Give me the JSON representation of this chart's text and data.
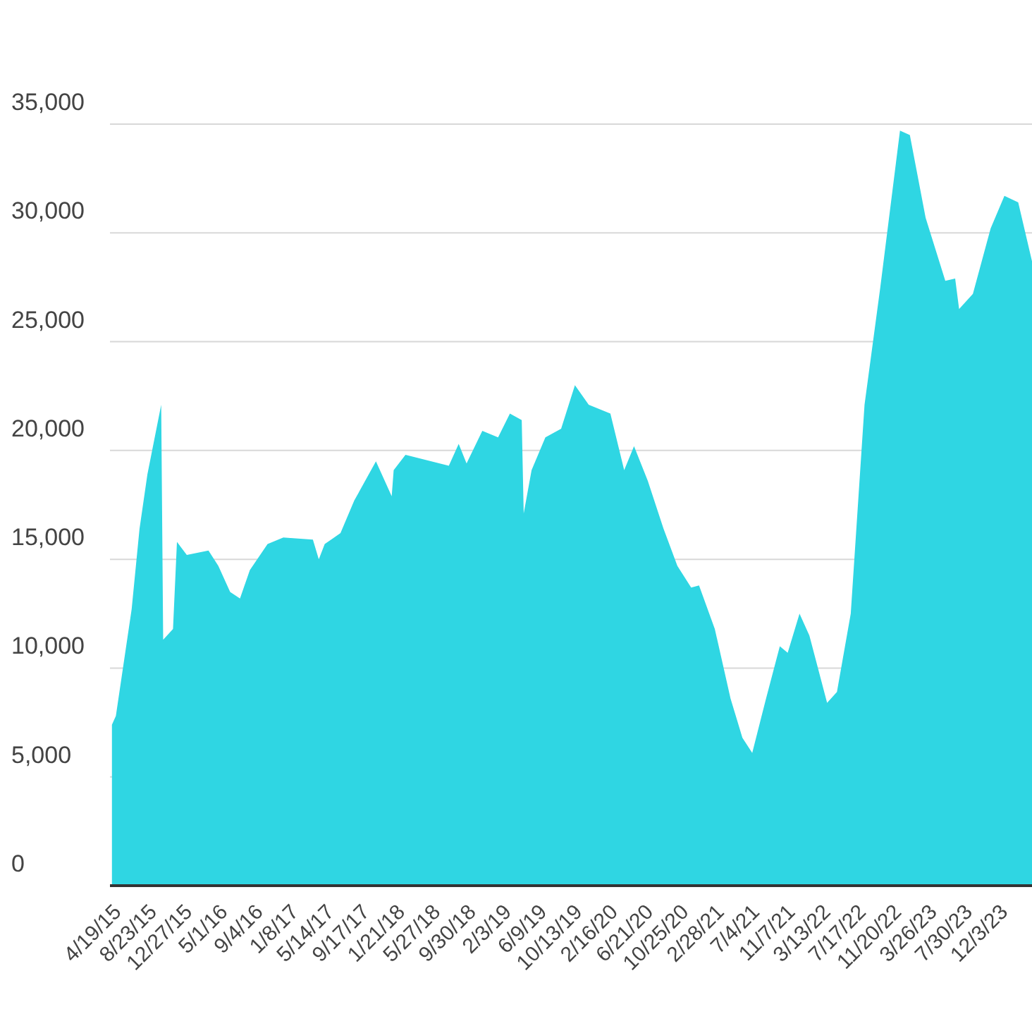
{
  "chart_data": {
    "type": "area",
    "color": "#2fd6e3",
    "grid": "y",
    "legend": false,
    "x": [
      "2015-04-19",
      "2015-05-03",
      "2015-06-28",
      "2015-07-26",
      "2015-08-23",
      "2015-10-11",
      "2015-10-18",
      "2015-11-22",
      "2015-12-06",
      "2016-01-10",
      "2016-03-27",
      "2016-05-01",
      "2016-06-12",
      "2016-07-17",
      "2016-08-21",
      "2016-10-23",
      "2016-12-18",
      "2017-04-02",
      "2017-04-23",
      "2017-05-14",
      "2017-07-09",
      "2017-08-27",
      "2017-11-12",
      "2018-01-07",
      "2018-01-14",
      "2018-02-25",
      "2018-07-29",
      "2018-09-02",
      "2018-09-30",
      "2018-11-25",
      "2019-01-20",
      "2019-03-03",
      "2019-04-14",
      "2019-04-21",
      "2019-05-19",
      "2019-07-07",
      "2019-09-01",
      "2019-10-20",
      "2019-12-08",
      "2020-02-23",
      "2020-04-12",
      "2020-05-17",
      "2020-07-05",
      "2020-08-30",
      "2020-10-18",
      "2020-12-06",
      "2021-01-03",
      "2021-02-28",
      "2021-04-25",
      "2021-06-06",
      "2021-07-11",
      "2021-08-29",
      "2021-10-17",
      "2021-11-14",
      "2021-12-26",
      "2022-01-30",
      "2022-04-03",
      "2022-05-08",
      "2022-06-26",
      "2022-08-14",
      "2022-10-09",
      "2022-12-18",
      "2023-01-22",
      "2023-03-19",
      "2023-05-28",
      "2023-07-02",
      "2023-07-16",
      "2023-09-03",
      "2023-11-05",
      "2023-12-24",
      "2024-02-11",
      "2024-03-31"
    ],
    "values": [
      7400,
      7800,
      12700,
      16400,
      18900,
      22100,
      11300,
      11800,
      15800,
      15200,
      15400,
      14700,
      13500,
      13200,
      14500,
      15700,
      16000,
      15900,
      15000,
      15700,
      16200,
      17700,
      19500,
      17900,
      19100,
      19800,
      19300,
      20300,
      19400,
      20900,
      20600,
      21700,
      21400,
      17100,
      19100,
      20600,
      21000,
      23000,
      22100,
      21700,
      19100,
      20200,
      18600,
      16400,
      14700,
      13700,
      13800,
      11800,
      8600,
      6800,
      6100,
      8600,
      11000,
      10700,
      12500,
      11500,
      8400,
      8900,
      12500,
      22100,
      27500,
      34700,
      34500,
      30700,
      27800,
      27900,
      26500,
      27200,
      30200,
      31700,
      31400,
      28700
    ],
    "xlim": [
      "2015-04-12",
      "2024-03-31"
    ],
    "xticks": [
      {
        "value": "2015-04-19",
        "label": "4/19/15"
      },
      {
        "value": "2015-08-23",
        "label": "8/23/15"
      },
      {
        "value": "2015-12-27",
        "label": "12/27/15"
      },
      {
        "value": "2016-05-01",
        "label": "5/1/16"
      },
      {
        "value": "2016-09-04",
        "label": "9/4/16"
      },
      {
        "value": "2017-01-08",
        "label": "1/8/17"
      },
      {
        "value": "2017-05-14",
        "label": "5/14/17"
      },
      {
        "value": "2017-09-17",
        "label": "9/17/17"
      },
      {
        "value": "2018-01-21",
        "label": "1/21/18"
      },
      {
        "value": "2018-05-27",
        "label": "5/27/18"
      },
      {
        "value": "2018-09-30",
        "label": "9/30/18"
      },
      {
        "value": "2019-02-03",
        "label": "2/3/19"
      },
      {
        "value": "2019-06-09",
        "label": "6/9/19"
      },
      {
        "value": "2019-10-13",
        "label": "10/13/19"
      },
      {
        "value": "2020-02-16",
        "label": "2/16/20"
      },
      {
        "value": "2020-06-21",
        "label": "6/21/20"
      },
      {
        "value": "2020-10-25",
        "label": "10/25/20"
      },
      {
        "value": "2021-02-28",
        "label": "2/28/21"
      },
      {
        "value": "2021-07-04",
        "label": "7/4/21"
      },
      {
        "value": "2021-11-07",
        "label": "11/7/21"
      },
      {
        "value": "2022-03-13",
        "label": "3/13/22"
      },
      {
        "value": "2022-07-17",
        "label": "7/17/22"
      },
      {
        "value": "2022-11-20",
        "label": "11/20/22"
      },
      {
        "value": "2023-03-26",
        "label": "3/26/23"
      },
      {
        "value": "2023-07-30",
        "label": "7/30/23"
      },
      {
        "value": "2023-12-03",
        "label": "12/3/23"
      }
    ],
    "ylim": [
      0,
      35000
    ],
    "yticks": [
      {
        "value": 0,
        "label": "0"
      },
      {
        "value": 5000,
        "label": "5,000"
      },
      {
        "value": 10000,
        "label": "10,000"
      },
      {
        "value": 15000,
        "label": "15,000"
      },
      {
        "value": 20000,
        "label": "20,000"
      },
      {
        "value": 25000,
        "label": "25,000"
      },
      {
        "value": 30000,
        "label": "30,000"
      },
      {
        "value": 35000,
        "label": "35,000"
      }
    ]
  }
}
